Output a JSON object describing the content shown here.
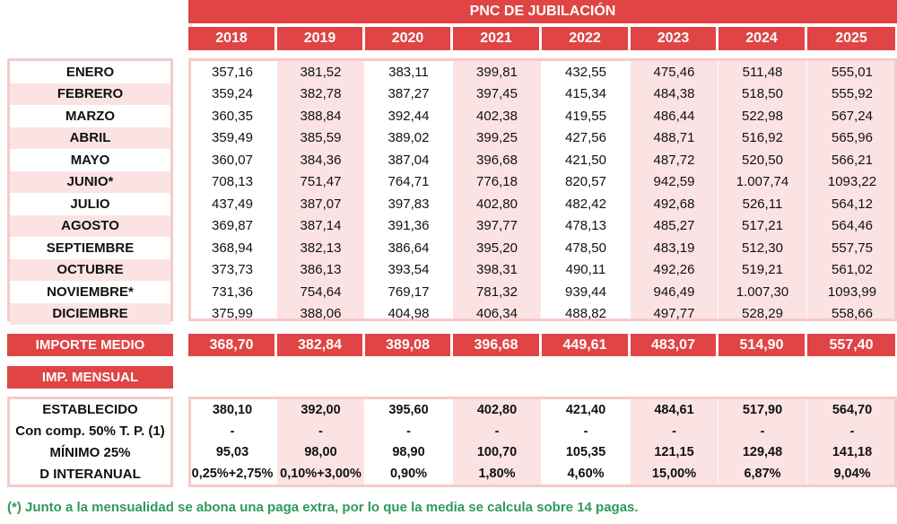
{
  "title": "PNC DE JUBILACIÓN",
  "years": [
    "2018",
    "2019",
    "2020",
    "2021",
    "2022",
    "2023",
    "2024",
    "2025"
  ],
  "months": [
    {
      "label": "ENERO",
      "values": [
        "357,16",
        "381,52",
        "383,11",
        "399,81",
        "432,55",
        "475,46",
        "511,48",
        "555,01"
      ]
    },
    {
      "label": "FEBRERO",
      "values": [
        "359,24",
        "382,78",
        "387,27",
        "397,45",
        "415,34",
        "484,38",
        "518,50",
        "555,92"
      ]
    },
    {
      "label": "MARZO",
      "values": [
        "360,35",
        "388,84",
        "392,44",
        "402,38",
        "419,55",
        "486,44",
        "522,98",
        "567,24"
      ]
    },
    {
      "label": "ABRIL",
      "values": [
        "359,49",
        "385,59",
        "389,02",
        "399,25",
        "427,56",
        "488,71",
        "516,92",
        "565,96"
      ]
    },
    {
      "label": "MAYO",
      "values": [
        "360,07",
        "384,36",
        "387,04",
        "396,68",
        "421,50",
        "487,72",
        "520,50",
        "566,21"
      ]
    },
    {
      "label": "JUNIO*",
      "values": [
        "708,13",
        "751,47",
        "764,71",
        "776,18",
        "820,57",
        "942,59",
        "1.007,74",
        "1093,22"
      ]
    },
    {
      "label": "JULIO",
      "values": [
        "437,49",
        "387,07",
        "397,83",
        "402,80",
        "482,42",
        "492,68",
        "526,11",
        "564,12"
      ]
    },
    {
      "label": "AGOSTO",
      "values": [
        "369,87",
        "387,14",
        "391,36",
        "397,77",
        "478,13",
        "485,27",
        "517,21",
        "564,46"
      ]
    },
    {
      "label": "SEPTIEMBRE",
      "values": [
        "368,94",
        "382,13",
        "386,64",
        "395,20",
        "478,50",
        "483,19",
        "512,30",
        "557,75"
      ]
    },
    {
      "label": "OCTUBRE",
      "values": [
        "373,73",
        "386,13",
        "393,54",
        "398,31",
        "490,11",
        "492,26",
        "519,21",
        "561,02"
      ]
    },
    {
      "label": "NOVIEMBRE*",
      "values": [
        "731,36",
        "754,64",
        "769,17",
        "781,32",
        "939,44",
        "946,49",
        "1.007,30",
        "1093,99"
      ]
    },
    {
      "label": "DICIEMBRE",
      "values": [
        "375,99",
        "388,06",
        "404,98",
        "406,34",
        "488,82",
        "497,77",
        "528,29",
        "558,66"
      ]
    }
  ],
  "importe_medio": {
    "label": "IMPORTE MEDIO",
    "values": [
      "368,70",
      "382,84",
      "389,08",
      "396,68",
      "449,61",
      "483,07",
      "514,90",
      "557,40"
    ]
  },
  "imp_mensual_label": "IMP. MENSUAL",
  "mensual": [
    {
      "label": "ESTABLECIDO",
      "values": [
        "380,10",
        "392,00",
        "395,60",
        "402,80",
        "421,40",
        "484,61",
        "517,90",
        "564,70"
      ]
    },
    {
      "label": "Con comp. 50% T. P. (1)",
      "values": [
        "-",
        "-",
        "-",
        "-",
        "-",
        "-",
        "-",
        "-"
      ]
    },
    {
      "label": "MÍNIMO 25%",
      "values": [
        "95,03",
        "98,00",
        "98,90",
        "100,70",
        "105,35",
        "121,15",
        "129,48",
        "141,18"
      ]
    },
    {
      "label": "D INTERANUAL",
      "values": [
        "0,25%+2,75%",
        "0,10%+3,00%",
        "0,90%",
        "1,80%",
        "4,60%",
        "15,00%",
        "6,87%",
        "9,04%"
      ]
    }
  ],
  "footnote": "(*) Junto a la mensualidad se abona una paga extra, por lo que la media se calcula sobre 14 pagas.",
  "colors": {
    "header": "#e04444",
    "shade": "#fce3e3",
    "border": "#f6caca",
    "footnote": "#2e9a5e"
  }
}
